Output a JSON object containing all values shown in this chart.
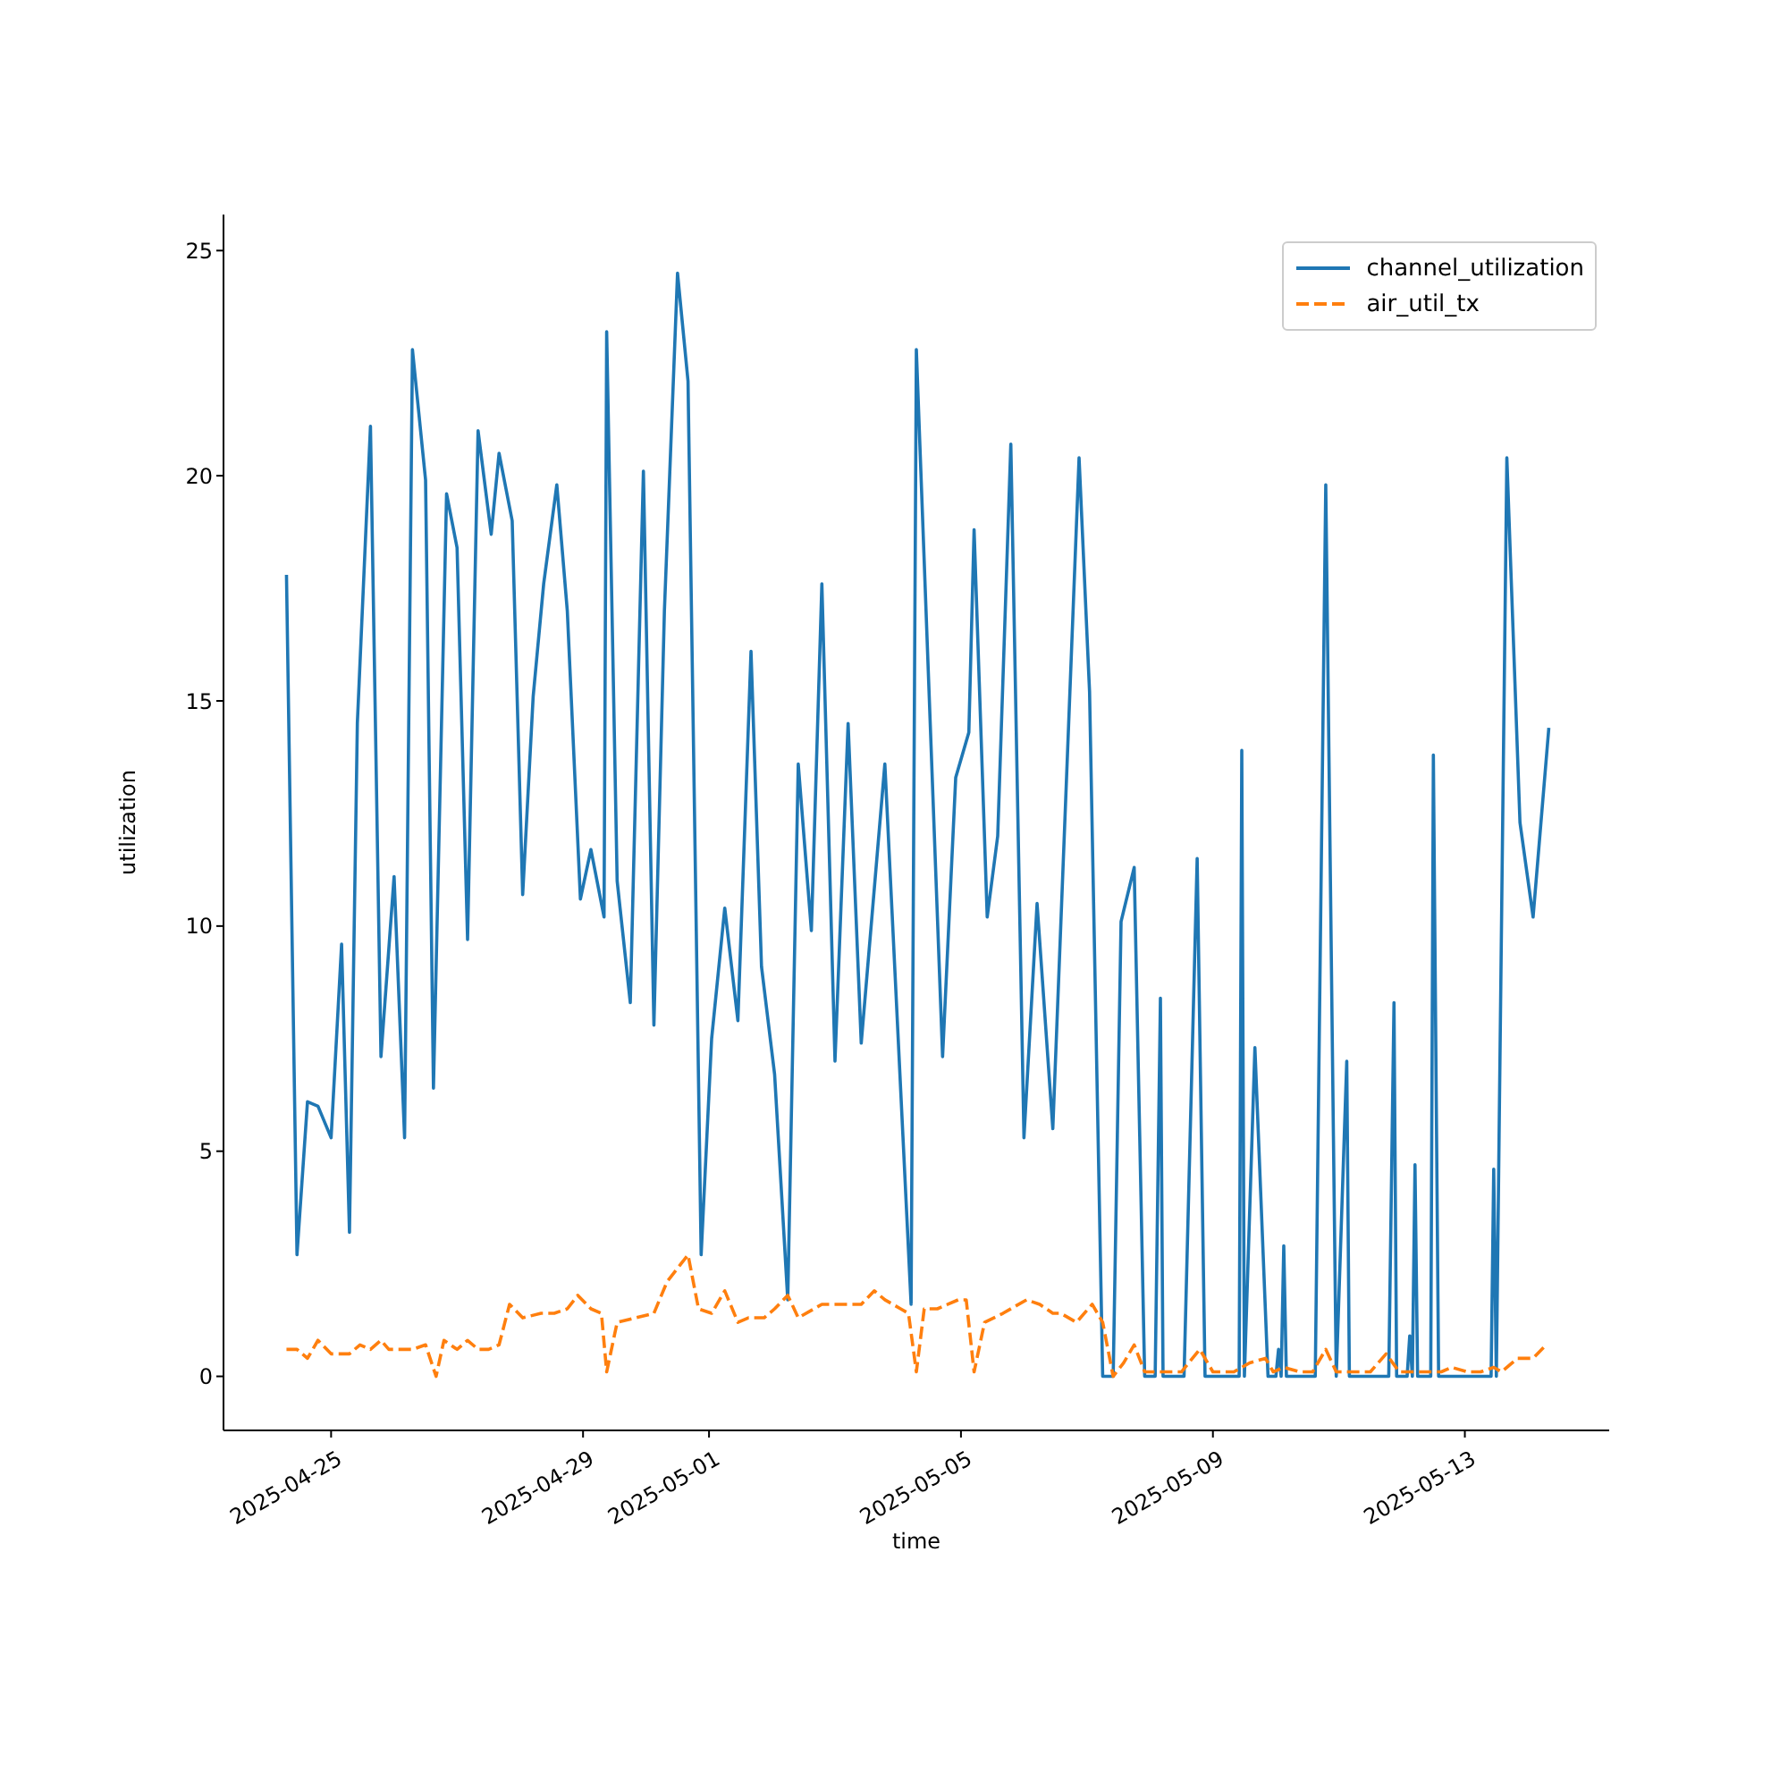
{
  "chart_data": {
    "type": "line",
    "xlabel": "time",
    "ylabel": "utilization",
    "xlim": [
      "2025-04-23T07:00",
      "2025-05-15T07:00"
    ],
    "xticks": [
      "2025-04-25",
      "2025-04-29",
      "2025-05-01",
      "2025-05-05",
      "2025-05-09",
      "2025-05-13"
    ],
    "ylim": [
      -1.2,
      25.8
    ],
    "yticks": [
      0,
      5,
      10,
      15,
      20,
      25
    ],
    "grid": false,
    "legend": "top right",
    "marker": "none",
    "series": [
      {
        "name": "channel_utilization",
        "color": "#1f77b4",
        "line_style": "solid",
        "x": [
          "2025-04-24T07:00",
          "2025-04-24T11:00",
          "2025-04-24T15:00",
          "2025-04-24T19:00",
          "2025-04-25T00:00",
          "2025-04-25T04:00",
          "2025-04-25T07:00",
          "2025-04-25T10:00",
          "2025-04-25T15:00",
          "2025-04-25T19:00",
          "2025-04-26T00:00",
          "2025-04-26T04:00",
          "2025-04-26T07:00",
          "2025-04-26T12:00",
          "2025-04-26T15:00",
          "2025-04-26T20:00",
          "2025-04-27T00:00",
          "2025-04-27T04:00",
          "2025-04-27T08:00",
          "2025-04-27T13:00",
          "2025-04-27T16:00",
          "2025-04-27T21:00",
          "2025-04-28T01:00",
          "2025-04-28T05:00",
          "2025-04-28T09:00",
          "2025-04-28T14:00",
          "2025-04-28T18:00",
          "2025-04-28T23:00",
          "2025-04-29T03:00",
          "2025-04-29T08:00",
          "2025-04-29T09:00",
          "2025-04-29T13:00",
          "2025-04-29T18:00",
          "2025-04-29T23:00",
          "2025-04-30T03:00",
          "2025-04-30T07:00",
          "2025-04-30T12:00",
          "2025-04-30T16:00",
          "2025-04-30T21:00",
          "2025-05-01T01:00",
          "2025-05-01T06:00",
          "2025-05-01T11:00",
          "2025-05-01T16:00",
          "2025-05-01T20:00",
          "2025-05-02T01:00",
          "2025-05-02T06:00",
          "2025-05-02T10:00",
          "2025-05-02T15:00",
          "2025-05-02T19:00",
          "2025-05-03T00:00",
          "2025-05-03T05:00",
          "2025-05-03T10:00",
          "2025-05-03T19:00",
          "2025-05-04T05:00",
          "2025-05-04T07:00",
          "2025-05-04T17:00",
          "2025-05-04T22:00",
          "2025-05-05T03:00",
          "2025-05-05T05:00",
          "2025-05-05T10:00",
          "2025-05-05T14:00",
          "2025-05-05T19:00",
          "2025-05-06T00:00",
          "2025-05-06T05:00",
          "2025-05-06T11:00",
          "2025-05-06T21:00",
          "2025-05-07T01:00",
          "2025-05-07T06:00",
          "2025-05-07T10:00",
          "2025-05-07T13:00",
          "2025-05-07T18:00",
          "2025-05-07T22:00",
          "2025-05-08T02:00",
          "2025-05-08T04:00",
          "2025-05-08T05:00",
          "2025-05-08T13:00",
          "2025-05-08T18:00",
          "2025-05-08T21:00",
          "2025-05-09T10:00",
          "2025-05-09T11:00",
          "2025-05-09T12:00",
          "2025-05-09T16:00",
          "2025-05-09T21:00",
          "2025-05-10T00:00",
          "2025-05-10T01:00",
          "2025-05-10T02:00",
          "2025-05-10T03:00",
          "2025-05-10T04:00",
          "2025-05-10T15:00",
          "2025-05-10T19:00",
          "2025-05-10T23:00",
          "2025-05-11T03:00",
          "2025-05-11T04:00",
          "2025-05-11T19:00",
          "2025-05-11T21:00",
          "2025-05-11T22:00",
          "2025-05-12T02:00",
          "2025-05-12T03:00",
          "2025-05-12T04:00",
          "2025-05-12T05:00",
          "2025-05-12T06:00",
          "2025-05-12T11:00",
          "2025-05-12T12:00",
          "2025-05-12T14:00",
          "2025-05-13T10:00",
          "2025-05-13T11:00",
          "2025-05-13T12:00",
          "2025-05-13T16:00",
          "2025-05-13T21:00",
          "2025-05-14T02:00",
          "2025-05-14T08:00"
        ],
        "values": [
          17.8,
          2.7,
          6.1,
          6.0,
          5.3,
          9.6,
          3.2,
          14.5,
          21.1,
          7.1,
          11.1,
          5.3,
          22.8,
          19.9,
          6.4,
          19.6,
          18.4,
          9.7,
          21.0,
          18.7,
          20.5,
          19.0,
          10.7,
          15.1,
          17.6,
          19.8,
          17.0,
          10.6,
          11.7,
          10.2,
          23.2,
          11.0,
          8.3,
          20.1,
          7.8,
          17.0,
          24.5,
          22.1,
          2.7,
          7.5,
          10.4,
          7.9,
          16.1,
          9.1,
          6.7,
          1.7,
          13.6,
          9.9,
          17.6,
          7.0,
          14.5,
          7.4,
          13.6,
          1.6,
          22.8,
          7.1,
          13.3,
          14.3,
          18.8,
          10.2,
          12.0,
          20.7,
          5.3,
          10.5,
          5.5,
          20.4,
          15.2,
          0,
          0,
          10.1,
          11.3,
          0,
          0,
          8.4,
          0,
          0,
          11.5,
          0,
          0,
          13.9,
          0,
          7.3,
          0,
          0,
          0.6,
          0,
          2.9,
          0,
          0,
          19.8,
          0,
          7.0,
          0,
          0,
          8.3,
          0,
          0,
          0.9,
          0,
          4.7,
          0,
          0,
          13.8,
          0,
          0,
          4.6,
          0,
          20.4,
          12.3,
          10.2,
          14.4
        ]
      },
      {
        "name": "air_util_tx",
        "color": "#ff7f0e",
        "line_style": "dashed",
        "x": [
          "2025-04-24T07:00",
          "2025-04-24T11:00",
          "2025-04-24T15:00",
          "2025-04-24T19:00",
          "2025-04-25T00:00",
          "2025-04-25T03:00",
          "2025-04-25T07:00",
          "2025-04-25T11:00",
          "2025-04-25T15:00",
          "2025-04-25T19:00",
          "2025-04-25T22:00",
          "2025-04-26T03:00",
          "2025-04-26T07:00",
          "2025-04-26T12:00",
          "2025-04-26T16:00",
          "2025-04-26T19:00",
          "2025-04-27T00:00",
          "2025-04-27T04:00",
          "2025-04-27T08:00",
          "2025-04-27T12:00",
          "2025-04-27T16:00",
          "2025-04-27T20:00",
          "2025-04-28T01:00",
          "2025-04-28T08:00",
          "2025-04-28T13:00",
          "2025-04-28T18:00",
          "2025-04-28T22:00",
          "2025-04-29T03:00",
          "2025-04-29T07:00",
          "2025-04-29T09:00",
          "2025-04-29T13:00",
          "2025-04-29T20:00",
          "2025-04-30T03:00",
          "2025-04-30T08:00",
          "2025-04-30T16:00",
          "2025-04-30T20:00",
          "2025-05-01T01:00",
          "2025-05-01T06:00",
          "2025-05-01T11:00",
          "2025-05-01T15:00",
          "2025-05-01T21:00",
          "2025-05-02T01:00",
          "2025-05-02T06:00",
          "2025-05-02T10:00",
          "2025-05-02T19:00",
          "2025-05-03T06:00",
          "2025-05-03T10:00",
          "2025-05-03T15:00",
          "2025-05-03T19:00",
          "2025-05-04T01:00",
          "2025-05-04T04:00",
          "2025-05-04T07:00",
          "2025-05-04T10:00",
          "2025-05-04T15:00",
          "2025-05-04T19:00",
          "2025-05-04T23:00",
          "2025-05-05T02:00",
          "2025-05-05T05:00",
          "2025-05-05T09:00",
          "2025-05-05T16:00",
          "2025-05-06T01:00",
          "2025-05-06T06:00",
          "2025-05-06T11:00",
          "2025-05-06T14:00",
          "2025-05-06T20:00",
          "2025-05-07T02:00",
          "2025-05-07T06:00",
          "2025-05-07T10:00",
          "2025-05-07T14:00",
          "2025-05-07T18:00",
          "2025-05-07T22:00",
          "2025-05-08T05:00",
          "2025-05-08T12:00",
          "2025-05-08T19:00",
          "2025-05-09T00:00",
          "2025-05-09T08:00",
          "2025-05-09T14:00",
          "2025-05-09T20:00",
          "2025-05-09T23:00",
          "2025-05-10T03:00",
          "2025-05-10T09:00",
          "2025-05-10T14:00",
          "2025-05-10T19:00",
          "2025-05-10T23:00",
          "2025-05-11T06:00",
          "2025-05-11T12:00",
          "2025-05-11T18:00",
          "2025-05-11T23:00",
          "2025-05-12T05:00",
          "2025-05-12T11:00",
          "2025-05-12T15:00",
          "2025-05-12T19:00",
          "2025-05-13T01:00",
          "2025-05-13T06:00",
          "2025-05-13T11:00",
          "2025-05-13T14:00",
          "2025-05-13T20:00",
          "2025-05-14T02:00",
          "2025-05-14T07:00"
        ],
        "values": [
          0.6,
          0.6,
          0.4,
          0.8,
          0.5,
          0.5,
          0.5,
          0.7,
          0.6,
          0.8,
          0.6,
          0.6,
          0.6,
          0.7,
          0.0,
          0.8,
          0.6,
          0.8,
          0.6,
          0.6,
          0.7,
          1.6,
          1.3,
          1.4,
          1.4,
          1.5,
          1.8,
          1.5,
          1.4,
          0.1,
          1.2,
          1.3,
          1.4,
          2.1,
          2.7,
          1.5,
          1.4,
          1.9,
          1.2,
          1.3,
          1.3,
          1.5,
          1.8,
          1.3,
          1.6,
          1.6,
          1.6,
          1.9,
          1.7,
          1.5,
          1.4,
          0.1,
          1.5,
          1.5,
          1.6,
          1.7,
          1.7,
          0.1,
          1.2,
          1.4,
          1.7,
          1.6,
          1.4,
          1.4,
          1.2,
          1.6,
          1.2,
          0.0,
          0.3,
          0.7,
          0.1,
          0.1,
          0.1,
          0.6,
          0.1,
          0.1,
          0.3,
          0.4,
          0.1,
          0.2,
          0.1,
          0.1,
          0.6,
          0.1,
          0.1,
          0.1,
          0.5,
          0.1,
          0.1,
          0.1,
          0.1,
          0.2,
          0.1,
          0.1,
          0.2,
          0.1,
          0.4,
          0.4,
          0.7
        ]
      }
    ]
  }
}
